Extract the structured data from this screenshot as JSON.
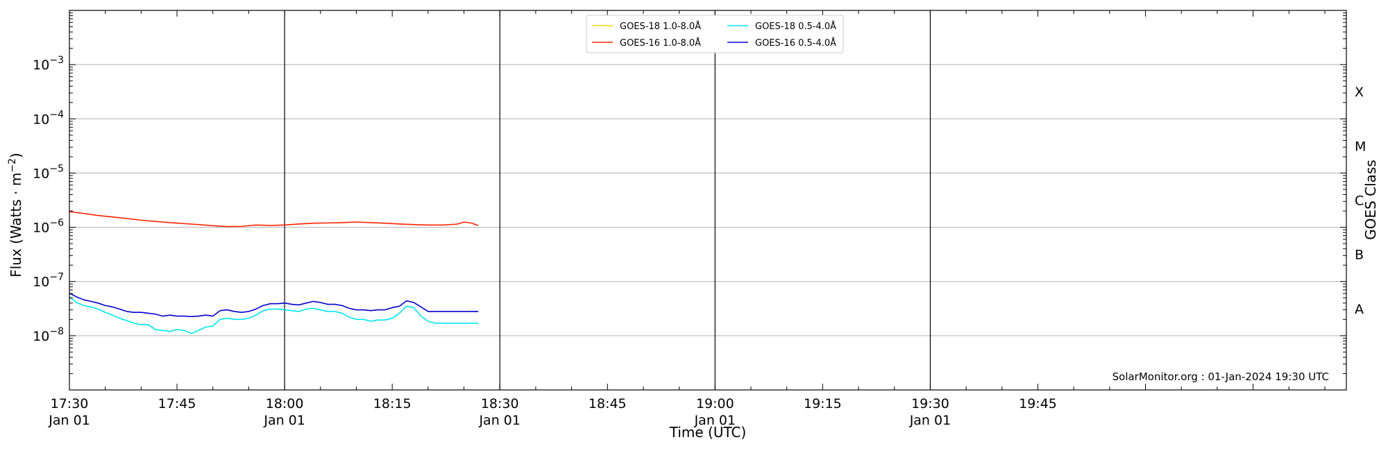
{
  "chart_data": {
    "type": "line",
    "xlabel": "Time (UTC)",
    "ylabel": "Flux (Watts · m⁻²)",
    "y2label": "GOES Class",
    "yscale": "log",
    "xlim_minutes_after_1730": [
      0,
      178
    ],
    "ylim": [
      1e-09,
      0.01
    ],
    "grid": "horizontal at decades",
    "legend_position": "top-center",
    "x_ticks": [
      {
        "minute": 0,
        "label": "17:30",
        "sublabel": "Jan 01"
      },
      {
        "minute": 15,
        "label": "17:45",
        "sublabel": ""
      },
      {
        "minute": 30,
        "label": "18:00",
        "sublabel": "Jan 01"
      },
      {
        "minute": 45,
        "label": "18:15",
        "sublabel": ""
      },
      {
        "minute": 60,
        "label": "18:30",
        "sublabel": "Jan 01"
      },
      {
        "minute": 75,
        "label": "18:45",
        "sublabel": ""
      },
      {
        "minute": 90,
        "label": "19:00",
        "sublabel": "Jan 01"
      },
      {
        "minute": 105,
        "label": "19:15",
        "sublabel": ""
      },
      {
        "minute": 120,
        "label": "19:30",
        "sublabel": "Jan 01"
      },
      {
        "minute": 135,
        "label": "19:45",
        "sublabel": ""
      }
    ],
    "vlines_minutes": [
      30,
      60,
      90,
      120
    ],
    "y_ticks": [
      {
        "exp": -3,
        "base": "10",
        "sup": "−3"
      },
      {
        "exp": -4,
        "base": "10",
        "sup": "−4"
      },
      {
        "exp": -5,
        "base": "10",
        "sup": "−5"
      },
      {
        "exp": -6,
        "base": "10",
        "sup": "−6"
      },
      {
        "exp": -7,
        "base": "10",
        "sup": "−7"
      },
      {
        "exp": -8,
        "base": "10",
        "sup": "−8"
      }
    ],
    "goes_classes": [
      {
        "label": "X",
        "exp": -3.5
      },
      {
        "label": "M",
        "exp": -4.5
      },
      {
        "label": "C",
        "exp": -5.5
      },
      {
        "label": "B",
        "exp": -6.5
      },
      {
        "label": "A",
        "exp": -7.5
      }
    ],
    "series": [
      {
        "name": "GOES-18 1.0-8.0Å",
        "color": "#ffd700",
        "minutes": [],
        "values": []
      },
      {
        "name": "GOES-16 1.0-8.0Å",
        "color": "#ff2200",
        "minutes": [
          0,
          2,
          4,
          6,
          8,
          10,
          12,
          14,
          16,
          18,
          20,
          22,
          24,
          26,
          28,
          30,
          32,
          34,
          36,
          38,
          40,
          42,
          44,
          46,
          48,
          50,
          52,
          54,
          55,
          56,
          57
        ],
        "values": [
          1.95e-06,
          1.8e-06,
          1.65e-06,
          1.55e-06,
          1.45e-06,
          1.35e-06,
          1.28e-06,
          1.22e-06,
          1.17e-06,
          1.12e-06,
          1.07e-06,
          1.03e-06,
          1.04e-06,
          1.1e-06,
          1.08e-06,
          1.1e-06,
          1.15e-06,
          1.19e-06,
          1.2e-06,
          1.22e-06,
          1.25e-06,
          1.22e-06,
          1.19e-06,
          1.15e-06,
          1.12e-06,
          1.1e-06,
          1.1e-06,
          1.14e-06,
          1.25e-06,
          1.2e-06,
          1.08e-06
        ]
      },
      {
        "name": "GOES-18 0.5-4.0Å",
        "color": "#00e5ee",
        "minutes": [
          0,
          1,
          2,
          3,
          4,
          5,
          6,
          7,
          8,
          9,
          10,
          11,
          12,
          13,
          14,
          15,
          16,
          17,
          18,
          19,
          20,
          21,
          22,
          23,
          24,
          25,
          26,
          27,
          28,
          29,
          30,
          31,
          32,
          33,
          34,
          35,
          36,
          37,
          38,
          39,
          40,
          41,
          42,
          43,
          44,
          45,
          46,
          47,
          48,
          49,
          50,
          51,
          52,
          53,
          54,
          55,
          56,
          57
        ],
        "values": [
          5.2e-08,
          4.1e-08,
          3.6e-08,
          3.4e-08,
          3.1e-08,
          2.7e-08,
          2.4e-08,
          2.1e-08,
          1.9e-08,
          1.7e-08,
          1.6e-08,
          1.6e-08,
          1.3e-08,
          1.25e-08,
          1.2e-08,
          1.3e-08,
          1.25e-08,
          1.1e-08,
          1.25e-08,
          1.45e-08,
          1.5e-08,
          2e-08,
          2.1e-08,
          2e-08,
          2e-08,
          2.1e-08,
          2.4e-08,
          2.9e-08,
          3.1e-08,
          3.1e-08,
          3e-08,
          2.9e-08,
          2.8e-08,
          3.1e-08,
          3.2e-08,
          3e-08,
          2.8e-08,
          2.8e-08,
          2.6e-08,
          2.2e-08,
          2e-08,
          2e-08,
          1.85e-08,
          1.95e-08,
          1.95e-08,
          2.1e-08,
          2.6e-08,
          3.5e-08,
          3.3e-08,
          2.3e-08,
          1.85e-08,
          1.7e-08,
          1.7e-08,
          1.7e-08,
          1.7e-08,
          1.7e-08,
          1.7e-08,
          1.7e-08
        ]
      },
      {
        "name": "GOES-16 0.5-4.0Å",
        "color": "#0000cc",
        "minutes": [
          0,
          1,
          2,
          3,
          4,
          5,
          6,
          7,
          8,
          9,
          10,
          11,
          12,
          13,
          14,
          15,
          16,
          17,
          18,
          19,
          20,
          21,
          22,
          23,
          24,
          25,
          26,
          27,
          28,
          29,
          30,
          31,
          32,
          33,
          34,
          35,
          36,
          37,
          38,
          39,
          40,
          41,
          42,
          43,
          44,
          45,
          46,
          47,
          48,
          49,
          50,
          51,
          52,
          53,
          54,
          55,
          56,
          57
        ],
        "values": [
          6.1e-08,
          5.2e-08,
          4.6e-08,
          4.3e-08,
          4e-08,
          3.6e-08,
          3.4e-08,
          3.1e-08,
          2.8e-08,
          2.7e-08,
          2.7e-08,
          2.6e-08,
          2.5e-08,
          2.3e-08,
          2.4e-08,
          2.3e-08,
          2.3e-08,
          2.25e-08,
          2.3e-08,
          2.4e-08,
          2.3e-08,
          2.9e-08,
          3e-08,
          2.8e-08,
          2.7e-08,
          2.8e-08,
          3.1e-08,
          3.6e-08,
          3.9e-08,
          3.9e-08,
          4e-08,
          3.8e-08,
          3.7e-08,
          4e-08,
          4.3e-08,
          4.1e-08,
          3.8e-08,
          3.8e-08,
          3.6e-08,
          3.2e-08,
          3e-08,
          3e-08,
          2.9e-08,
          3e-08,
          3e-08,
          3.3e-08,
          3.5e-08,
          4.4e-08,
          4.1e-08,
          3.4e-08,
          2.8e-08,
          2.8e-08,
          2.8e-08,
          2.8e-08,
          2.8e-08,
          2.8e-08,
          2.8e-08,
          2.8e-08
        ]
      }
    ],
    "annotation": "SolarMonitor.org : 01-Jan-2024 19:30 UTC"
  }
}
